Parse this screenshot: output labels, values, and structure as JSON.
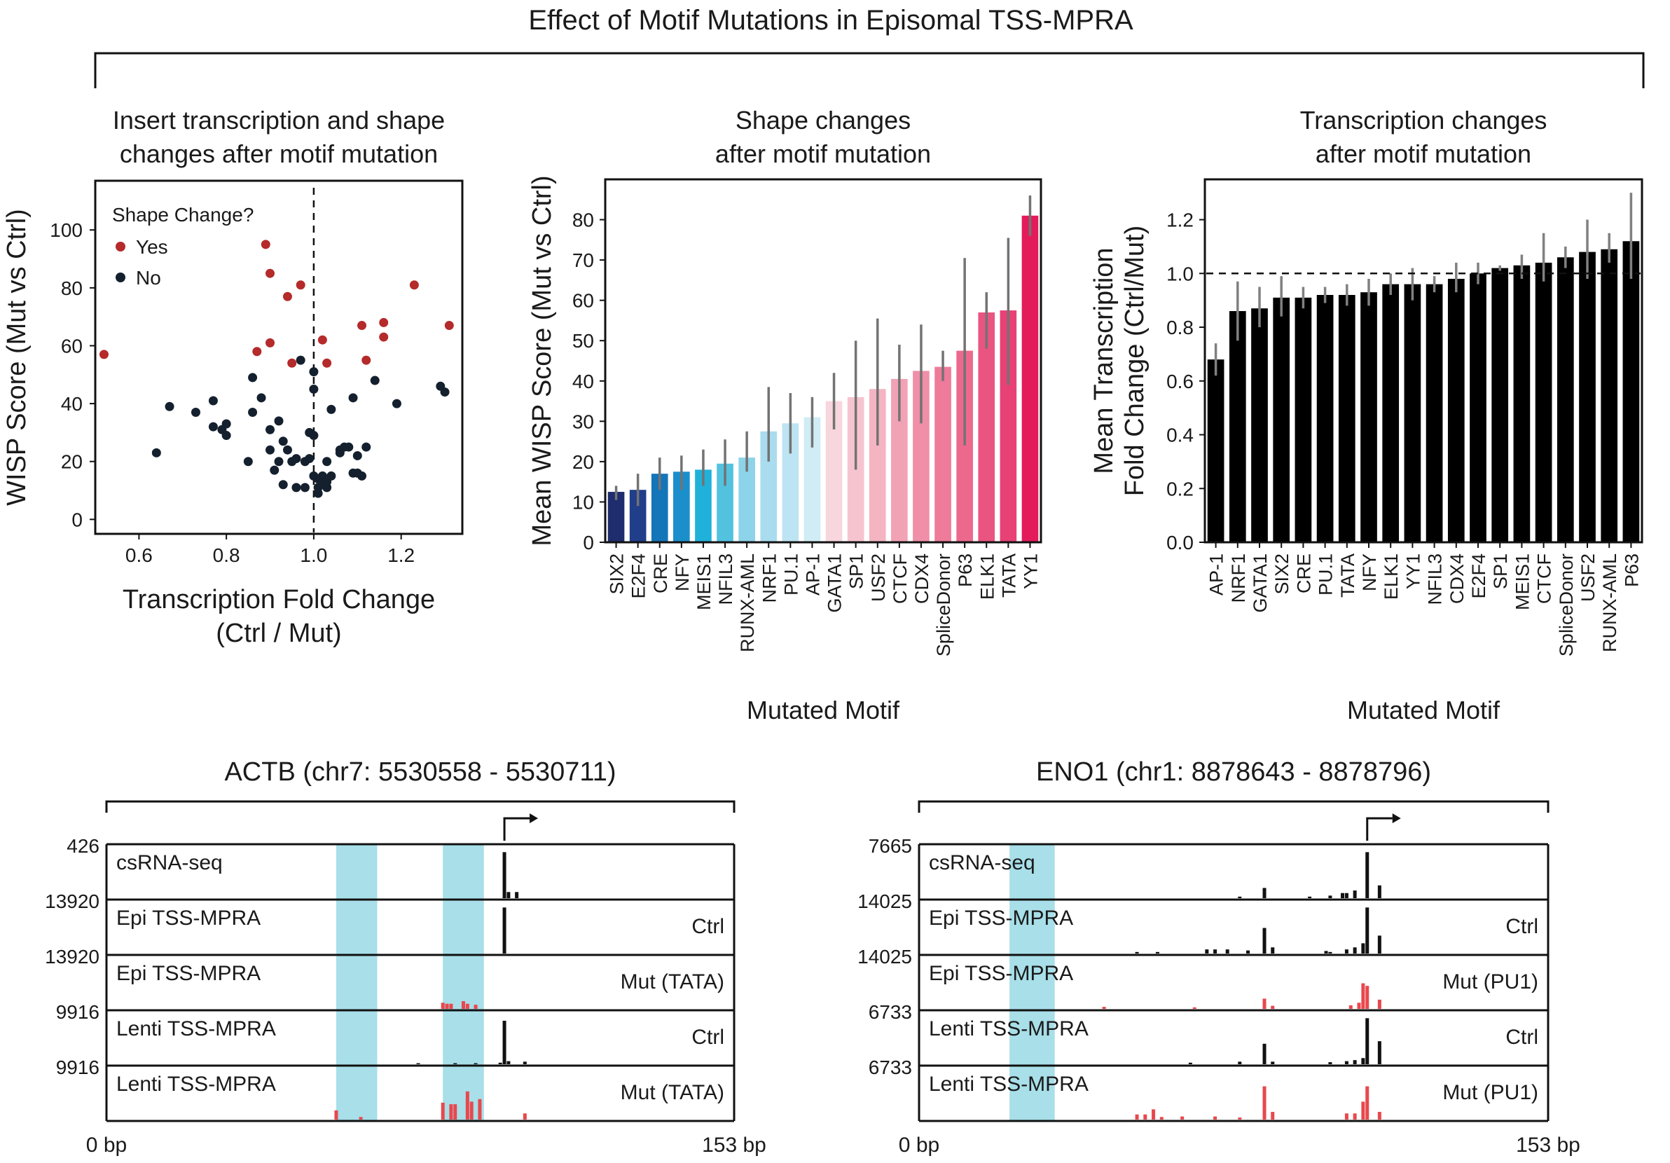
{
  "figure_title": "Effect of Motif Mutations in Episomal TSS-MPRA",
  "colors": {
    "yes": "#b52a2a",
    "no": "#14202e",
    "highlight": "#a8dfe9",
    "mut": "#e8484d",
    "track": "#111111"
  },
  "chart_data": [
    {
      "type": "scatter",
      "title": "Insert transcription and shape\nchanges after motif mutation",
      "xlabel": "Transcription Fold Change\n(Ctrl / Mut)",
      "ylabel": "WISP Score (Mut vs Ctrl)",
      "xlim": [
        0.5,
        1.34
      ],
      "ylim": [
        -5,
        117
      ],
      "xticks": [
        "0.6",
        "0.8",
        "1.0",
        "1.2"
      ],
      "yticks": [
        "0",
        "20",
        "40",
        "60",
        "80",
        "100"
      ],
      "vline": 1.0,
      "legend": {
        "title": "Shape Change?",
        "yes_label": "Yes",
        "no_label": "No",
        "placement": "top-left"
      },
      "series": [
        {
          "name": "Yes",
          "points": [
            [
              0.52,
              57
            ],
            [
              0.89,
              95
            ],
            [
              0.9,
              85
            ],
            [
              0.94,
              77
            ],
            [
              0.97,
              81
            ],
            [
              0.87,
              58
            ],
            [
              0.9,
              61
            ],
            [
              0.95,
              54
            ],
            [
              1.02,
              62
            ],
            [
              1.03,
              54
            ],
            [
              1.11,
              67
            ],
            [
              1.12,
              55
            ],
            [
              1.16,
              68
            ],
            [
              1.16,
              63
            ],
            [
              1.23,
              81
            ],
            [
              1.31,
              67
            ]
          ]
        },
        {
          "name": "No",
          "points": [
            [
              0.64,
              23
            ],
            [
              0.67,
              39
            ],
            [
              0.73,
              37
            ],
            [
              0.77,
              41
            ],
            [
              0.77,
              32
            ],
            [
              0.79,
              31
            ],
            [
              0.8,
              33
            ],
            [
              0.8,
              29
            ],
            [
              0.85,
              20
            ],
            [
              0.86,
              49
            ],
            [
              0.86,
              37
            ],
            [
              0.88,
              42
            ],
            [
              0.9,
              31
            ],
            [
              0.9,
              24
            ],
            [
              0.91,
              17
            ],
            [
              0.92,
              34
            ],
            [
              0.92,
              20
            ],
            [
              0.93,
              27
            ],
            [
              0.93,
              12
            ],
            [
              0.94,
              24
            ],
            [
              0.95,
              20
            ],
            [
              0.96,
              21
            ],
            [
              0.96,
              11
            ],
            [
              0.97,
              55
            ],
            [
              0.98,
              20
            ],
            [
              0.98,
              11
            ],
            [
              0.99,
              30
            ],
            [
              0.99,
              21
            ],
            [
              1.0,
              29
            ],
            [
              1.0,
              51
            ],
            [
              1.0,
              45
            ],
            [
              1.0,
              15
            ],
            [
              1.01,
              14
            ],
            [
              1.01,
              11
            ],
            [
              1.01,
              9
            ],
            [
              1.02,
              13
            ],
            [
              1.02,
              15
            ],
            [
              1.03,
              13
            ],
            [
              1.03,
              11
            ],
            [
              1.03,
              20
            ],
            [
              1.04,
              15
            ],
            [
              1.04,
              38
            ],
            [
              1.06,
              24
            ],
            [
              1.06,
              23
            ],
            [
              1.07,
              25
            ],
            [
              1.08,
              25
            ],
            [
              1.09,
              42
            ],
            [
              1.09,
              16
            ],
            [
              1.1,
              22
            ],
            [
              1.1,
              16
            ],
            [
              1.11,
              15
            ],
            [
              1.12,
              25
            ],
            [
              1.14,
              48
            ],
            [
              1.19,
              40
            ],
            [
              1.29,
              46
            ],
            [
              1.3,
              44
            ]
          ]
        }
      ]
    },
    {
      "type": "bar",
      "title": "Shape changes\nafter motif mutation",
      "xlabel": "Mutated Motif",
      "ylabel": "Mean WISP Score (Mut vs Ctrl)",
      "ylim": [
        0,
        90
      ],
      "yticks": [
        "0",
        "10",
        "20",
        "30",
        "40",
        "50",
        "60",
        "70",
        "80"
      ],
      "categories": [
        "SIX2",
        "E2F4",
        "CRE",
        "NFY",
        "MEIS1",
        "NFIL3",
        "RUNX-AML",
        "NRF1",
        "PU.1",
        "AP-1",
        "GATA1",
        "SP1",
        "USF2",
        "CTCF",
        "CDX4",
        "SpliceDonor",
        "P63",
        "ELK1",
        "TATA",
        "YY1"
      ],
      "values": [
        12.5,
        13,
        17,
        17.5,
        18,
        19.5,
        21,
        27.5,
        29.5,
        31,
        35,
        36,
        38,
        40.5,
        42.5,
        43.5,
        47.5,
        57,
        57.5,
        81
      ],
      "err_low": [
        10.5,
        9,
        13,
        13,
        14,
        14,
        17.5,
        20,
        22,
        23.5,
        28,
        18,
        24,
        30,
        29.5,
        40,
        24,
        48,
        39,
        76
      ],
      "err_high": [
        14,
        17,
        21,
        21.5,
        23,
        25.5,
        27.5,
        38.5,
        37,
        36,
        42,
        50,
        55.5,
        49,
        54,
        47.5,
        70.5,
        62,
        75.5,
        86
      ],
      "colors": [
        "#1f2d6e",
        "#203e8a",
        "#1575b9",
        "#1b8fcb",
        "#1fb1da",
        "#52c2de",
        "#8dd3ea",
        "#a9dcee",
        "#bde4f2",
        "#d0ecf5",
        "#f8d6dd",
        "#f6c4cf",
        "#f4b4c2",
        "#f2a2b5",
        "#f08fa7",
        "#ee7b99",
        "#ec698d",
        "#ea5481",
        "#e84175",
        "#e31b5a"
      ],
      "err_color": "#737373"
    },
    {
      "type": "bar",
      "title": "Transcription changes\nafter motif mutation",
      "xlabel": "Mutated Motif",
      "ylabel": "Mean Transcription\nFold Change (Ctrl/Mut)",
      "ylim": [
        0,
        1.35
      ],
      "yticks": [
        "0.0",
        "0.2",
        "0.4",
        "0.6",
        "0.8",
        "1.0",
        "1.2"
      ],
      "hline": 1.0,
      "categories": [
        "AP-1",
        "NRF1",
        "GATA1",
        "SIX2",
        "CRE",
        "PU.1",
        "TATA",
        "NFY",
        "ELK1",
        "YY1",
        "NFIL3",
        "CDX4",
        "E2F4",
        "SP1",
        "MEIS1",
        "CTCF",
        "SpliceDonor",
        "USF2",
        "RUNX-AML",
        "P63"
      ],
      "values": [
        0.68,
        0.86,
        0.87,
        0.91,
        0.91,
        0.92,
        0.92,
        0.93,
        0.96,
        0.96,
        0.96,
        0.98,
        1.0,
        1.02,
        1.03,
        1.04,
        1.06,
        1.08,
        1.09,
        1.12
      ],
      "err_low": [
        0.62,
        0.75,
        0.8,
        0.84,
        0.87,
        0.89,
        0.88,
        0.88,
        0.92,
        0.9,
        0.93,
        0.93,
        0.96,
        1.01,
        0.98,
        0.97,
        1.02,
        0.98,
        1.04,
        0.98
      ],
      "err_high": [
        0.74,
        0.97,
        0.95,
        0.99,
        0.95,
        0.95,
        0.96,
        0.98,
        1.0,
        1.02,
        0.99,
        1.04,
        1.04,
        1.03,
        1.07,
        1.15,
        1.1,
        1.2,
        1.15,
        1.3
      ],
      "bar_color": "#000000",
      "err_color": "#808080"
    }
  ],
  "browser_panels": [
    {
      "title": "ACTB (chr7: 5530558 - 5530711)",
      "axis_start": "0 bp",
      "axis_end": "153 bp",
      "highlights": [
        [
          56,
          66
        ],
        [
          82,
          92
        ]
      ],
      "tss": 97,
      "tracks": [
        {
          "scale": "426",
          "label": "csRNA-seq",
          "tag": "",
          "kind": "ctrl",
          "peaks": [
            [
              97,
              0.9
            ],
            [
              98,
              0.12
            ],
            [
              100,
              0.12
            ]
          ]
        },
        {
          "scale": "13920",
          "label": "Epi TSS-MPRA",
          "tag": "Ctrl",
          "kind": "ctrl",
          "peaks": [
            [
              97,
              0.9
            ]
          ]
        },
        {
          "scale": "13920",
          "label": "Epi TSS-MPRA",
          "tag": "Mut (TATA)",
          "kind": "mut",
          "peaks": [
            [
              82,
              0.12
            ],
            [
              83,
              0.1
            ],
            [
              84,
              0.1
            ],
            [
              87,
              0.15
            ],
            [
              88,
              0.1
            ],
            [
              90,
              0.08
            ]
          ]
        },
        {
          "scale": "9916",
          "label": "Lenti TSS-MPRA",
          "tag": "Ctrl",
          "kind": "ctrl",
          "peaks": [
            [
              97,
              0.85
            ],
            [
              98,
              0.06
            ],
            [
              102,
              0.05
            ],
            [
              96,
              0.03
            ],
            [
              90,
              0.02
            ],
            [
              85,
              0.02
            ],
            [
              76,
              0.02
            ]
          ]
        },
        {
          "scale": "9916",
          "label": "Lenti TSS-MPRA",
          "tag": "Mut (TATA)",
          "kind": "mut",
          "peaks": [
            [
              56,
              0.18
            ],
            [
              62,
              0.05
            ],
            [
              82,
              0.33
            ],
            [
              84,
              0.3
            ],
            [
              85,
              0.3
            ],
            [
              88,
              0.55
            ],
            [
              89,
              0.35
            ],
            [
              91,
              0.4
            ],
            [
              102,
              0.12
            ]
          ]
        }
      ]
    },
    {
      "title": "ENO1 (chr1: 8878643 - 8878796)",
      "axis_start": "0 bp",
      "axis_end": "153 bp",
      "highlights": [
        [
          22,
          33
        ]
      ],
      "tss": 109,
      "tracks": [
        {
          "scale": "7665",
          "label": "csRNA-seq",
          "tag": "",
          "kind": "ctrl",
          "peaks": [
            [
              84,
              0.2
            ],
            [
              103,
              0.1
            ],
            [
              104,
              0.1
            ],
            [
              106,
              0.15
            ],
            [
              109,
              0.9
            ],
            [
              112,
              0.25
            ],
            [
              100,
              0.05
            ],
            [
              95,
              0.03
            ],
            [
              78,
              0.03
            ]
          ]
        },
        {
          "scale": "14025",
          "label": "Epi TSS-MPRA",
          "tag": "Ctrl",
          "kind": "ctrl",
          "peaks": [
            [
              53,
              0.03
            ],
            [
              58,
              0.03
            ],
            [
              70,
              0.08
            ],
            [
              72,
              0.08
            ],
            [
              75,
              0.08
            ],
            [
              80,
              0.06
            ],
            [
              84,
              0.5
            ],
            [
              86,
              0.12
            ],
            [
              99,
              0.05
            ],
            [
              104,
              0.08
            ],
            [
              106,
              0.12
            ],
            [
              108,
              0.2
            ],
            [
              109,
              0.9
            ],
            [
              112,
              0.35
            ],
            [
              100,
              0.03
            ]
          ]
        },
        {
          "scale": "14025",
          "label": "Epi TSS-MPRA",
          "tag": "Mut (PU1)",
          "kind": "mut",
          "peaks": [
            [
              45,
              0.04
            ],
            [
              67,
              0.03
            ],
            [
              84,
              0.2
            ],
            [
              86,
              0.06
            ],
            [
              105,
              0.07
            ],
            [
              107,
              0.12
            ],
            [
              108,
              0.5
            ],
            [
              109,
              0.45
            ],
            [
              112,
              0.18
            ]
          ]
        },
        {
          "scale": "6733",
          "label": "Lenti TSS-MPRA",
          "tag": "Ctrl",
          "kind": "ctrl",
          "peaks": [
            [
              66,
              0.03
            ],
            [
              78,
              0.05
            ],
            [
              84,
              0.4
            ],
            [
              86,
              0.05
            ],
            [
              100,
              0.04
            ],
            [
              104,
              0.06
            ],
            [
              106,
              0.08
            ],
            [
              108,
              0.12
            ],
            [
              109,
              0.9
            ],
            [
              112,
              0.45
            ]
          ]
        },
        {
          "scale": "6733",
          "label": "Lenti TSS-MPRA",
          "tag": "Mut (PU1)",
          "kind": "mut",
          "peaks": [
            [
              53,
              0.1
            ],
            [
              55,
              0.1
            ],
            [
              57,
              0.2
            ],
            [
              59,
              0.05
            ],
            [
              64,
              0.06
            ],
            [
              72,
              0.06
            ],
            [
              78,
              0.04
            ],
            [
              84,
              0.65
            ],
            [
              86,
              0.15
            ],
            [
              104,
              0.12
            ],
            [
              106,
              0.12
            ],
            [
              108,
              0.35
            ],
            [
              109,
              0.65
            ],
            [
              112,
              0.15
            ]
          ]
        }
      ]
    }
  ]
}
